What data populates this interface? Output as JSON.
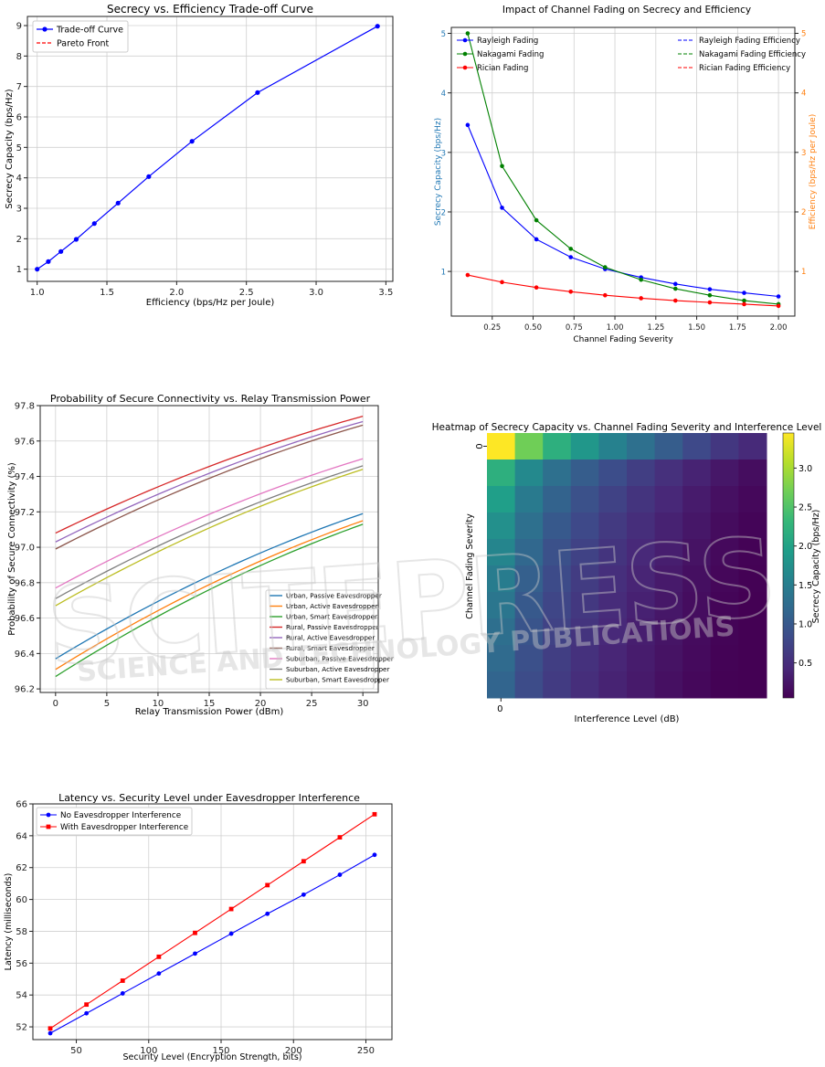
{
  "charts": {
    "tradeoff": {
      "title": "Secrecy vs. Efficiency Trade-off Curve",
      "xlabel": "Efficiency (bps/Hz per Joule)",
      "ylabel": "Secrecy Capacity (bps/Hz)",
      "legend": [
        "Trade-off Curve",
        "Pareto Front"
      ]
    },
    "fading": {
      "title": "Impact of Channel Fading on Secrecy and Efficiency",
      "xlabel": "Channel Fading Severity",
      "ylabel": "Secrecy Capacity (bps/Hz)",
      "ylabel_right": "Efficiency (bps/Hz per Joule)",
      "legend_left": [
        "Rayleigh Fading",
        "Nakagami Fading",
        "Rician Fading"
      ],
      "legend_right": [
        "Rayleigh Fading Efficiency",
        "Nakagami Fading Efficiency",
        "Rician Fading Efficiency"
      ]
    },
    "connectivity": {
      "title": "Probability of Secure Connectivity vs. Relay Transmission Power",
      "xlabel": "Relay Transmission Power (dBm)",
      "ylabel": "Probability of Secure Connectivity (%)"
    },
    "heatmap": {
      "title": "Heatmap of Secrecy Capacity vs. Channel Fading Severity and Interference Level",
      "xlabel": "Interference Level (dB)",
      "ylabel": "Channel Fading Severity",
      "cbar_label": "Secrecy Capacity (bps/Hz)"
    },
    "latency": {
      "title": "Latency vs. Security Level under Eavesdropper Interference",
      "xlabel": "Security Level (Encryption Strength, bits)",
      "ylabel": "Latency (milliseconds)",
      "legend": [
        "No Eavesdropper Interference",
        "With Eavesdropper Interference"
      ]
    }
  },
  "watermark": {
    "main": "SCITEPRESS",
    "sub": "SCIENCE AND TECHNOLOGY PUBLICATIONS"
  },
  "chart_data": [
    {
      "id": "tradeoff",
      "type": "line",
      "title": "Secrecy vs. Efficiency Trade-off Curve",
      "xlabel": "Efficiency (bps/Hz per Joule)",
      "ylabel": "Secrecy Capacity (bps/Hz)",
      "xlim": [
        0.93,
        3.55
      ],
      "ylim": [
        0.6,
        9.3
      ],
      "xticks": [
        1.0,
        1.5,
        2.0,
        2.5,
        3.0,
        3.5
      ],
      "yticks": [
        1,
        2,
        3,
        4,
        5,
        6,
        7,
        8,
        9
      ],
      "grid": true,
      "legend_position": "top-left",
      "series": [
        {
          "name": "Trade-off Curve",
          "color": "#0000ff",
          "marker": "circle",
          "x": [
            1.0,
            1.08,
            1.17,
            1.28,
            1.41,
            1.58,
            1.8,
            2.11,
            2.58,
            3.44
          ],
          "y": [
            1.0,
            1.25,
            1.58,
            1.98,
            2.5,
            3.17,
            4.04,
            5.2,
            6.8,
            8.98
          ]
        },
        {
          "name": "Pareto Front",
          "color": "#ff0000",
          "dash": true,
          "x": [],
          "y": []
        }
      ]
    },
    {
      "id": "fading",
      "type": "line",
      "title": "Impact of Channel Fading on Secrecy and Efficiency",
      "xlabel": "Channel Fading Severity",
      "ylabel": "Secrecy Capacity (bps/Hz)",
      "ylabel_right": "Efficiency (bps/Hz per Joule)",
      "xlim": [
        0.0,
        2.1
      ],
      "ylim": [
        0.25,
        5.1
      ],
      "xticks": [
        0.25,
        0.5,
        0.75,
        1.0,
        1.25,
        1.5,
        1.75,
        2.0
      ],
      "yticks": [
        1,
        2,
        3,
        4,
        5
      ],
      "grid": true,
      "x": [
        0.1,
        0.31,
        0.52,
        0.73,
        0.94,
        1.16,
        1.37,
        1.58,
        1.79,
        2.0
      ],
      "series": [
        {
          "name": "Rayleigh Fading",
          "color": "#0000ff",
          "marker": "circle",
          "values": [
            3.46,
            2.07,
            1.54,
            1.24,
            1.04,
            0.9,
            0.79,
            0.7,
            0.64,
            0.58
          ]
        },
        {
          "name": "Nakagami Fading",
          "color": "#008000",
          "marker": "circle",
          "values": [
            5.0,
            2.77,
            1.86,
            1.38,
            1.07,
            0.86,
            0.71,
            0.6,
            0.51,
            0.45
          ]
        },
        {
          "name": "Rician Fading",
          "color": "#ff0000",
          "marker": "circle",
          "values": [
            0.94,
            0.82,
            0.73,
            0.66,
            0.6,
            0.55,
            0.51,
            0.48,
            0.45,
            0.42
          ]
        }
      ],
      "secondary_series": [
        {
          "name": "Rayleigh Fading Efficiency",
          "color": "#0000ff",
          "dash": true
        },
        {
          "name": "Nakagami Fading Efficiency",
          "color": "#008000",
          "dash": true
        },
        {
          "name": "Rician Fading Efficiency",
          "color": "#ff0000",
          "dash": true
        }
      ]
    },
    {
      "id": "connectivity",
      "type": "line",
      "title": "Probability of Secure Connectivity vs. Relay Transmission Power",
      "xlabel": "Relay Transmission Power (dBm)",
      "ylabel": "Probability of Secure Connectivity (%)",
      "xlim": [
        -1.5,
        31.5
      ],
      "ylim": [
        96.18,
        97.8
      ],
      "xticks": [
        0,
        5,
        10,
        15,
        20,
        25,
        30
      ],
      "yticks": [
        96.2,
        96.4,
        96.6,
        96.8,
        97.0,
        97.2,
        97.4,
        97.6,
        97.8
      ],
      "grid": true,
      "legend_position": "lower-right",
      "x_range": [
        0,
        30
      ],
      "series": [
        {
          "name": "Urban, Passive Eavesdropper",
          "color": "#1f77b4",
          "start": 96.37,
          "end": 97.19
        },
        {
          "name": "Urban, Active Eavesdropper",
          "color": "#ff7f0e",
          "start": 96.31,
          "end": 97.15
        },
        {
          "name": "Urban, Smart Eavesdropper",
          "color": "#2ca02c",
          "start": 96.27,
          "end": 97.13
        },
        {
          "name": "Rural, Passive Eavesdropper",
          "color": "#d62728",
          "start": 97.08,
          "end": 97.74
        },
        {
          "name": "Rural, Active Eavesdropper",
          "color": "#9467bd",
          "start": 97.03,
          "end": 97.71
        },
        {
          "name": "Rural, Smart Eavesdropper",
          "color": "#8c564b",
          "start": 96.99,
          "end": 97.69
        },
        {
          "name": "Suburban, Passive Eavesdropper",
          "color": "#e377c2",
          "start": 96.77,
          "end": 97.5
        },
        {
          "name": "Suburban, Active Eavesdropper",
          "color": "#7f7f7f",
          "start": 96.71,
          "end": 97.46
        },
        {
          "name": "Suburban, Smart Eavesdropper",
          "color": "#bcbd22",
          "start": 96.67,
          "end": 97.44
        }
      ]
    },
    {
      "id": "heatmap",
      "type": "heatmap",
      "title": "Heatmap of Secrecy Capacity vs. Channel Fading Severity and Interference Level",
      "xlabel": "Interference Level (dB)",
      "ylabel": "Channel Fading Severity",
      "xticks": [
        "0"
      ],
      "yticks": [
        "0"
      ],
      "colorbar": {
        "label": "Secrecy Capacity (bps/Hz)",
        "range": [
          0.05,
          3.45
        ],
        "ticks": [
          0.5,
          1.0,
          1.5,
          2.0,
          2.5,
          3.0
        ],
        "colormap": "viridis"
      },
      "rows": 10,
      "cols": 10,
      "values": [
        [
          3.45,
          2.7,
          2.2,
          1.85,
          1.55,
          1.3,
          1.05,
          0.8,
          0.6,
          0.45
        ],
        [
          2.2,
          1.65,
          1.3,
          1.05,
          0.85,
          0.68,
          0.52,
          0.38,
          0.26,
          0.17
        ],
        [
          1.95,
          1.45,
          1.12,
          0.9,
          0.72,
          0.57,
          0.43,
          0.3,
          0.2,
          0.12
        ],
        [
          1.75,
          1.3,
          1.0,
          0.8,
          0.63,
          0.5,
          0.37,
          0.26,
          0.16,
          0.09
        ],
        [
          1.6,
          1.18,
          0.9,
          0.72,
          0.57,
          0.44,
          0.33,
          0.22,
          0.13,
          0.07
        ],
        [
          1.48,
          1.08,
          0.83,
          0.66,
          0.51,
          0.4,
          0.29,
          0.19,
          0.11,
          0.06
        ],
        [
          1.38,
          1.0,
          0.77,
          0.61,
          0.47,
          0.36,
          0.26,
          0.17,
          0.09,
          0.05
        ],
        [
          1.29,
          0.94,
          0.72,
          0.57,
          0.44,
          0.33,
          0.24,
          0.15,
          0.08,
          0.05
        ],
        [
          1.22,
          0.89,
          0.68,
          0.53,
          0.41,
          0.31,
          0.22,
          0.14,
          0.07,
          0.05
        ],
        [
          1.15,
          0.84,
          0.64,
          0.5,
          0.38,
          0.29,
          0.2,
          0.12,
          0.06,
          0.05
        ]
      ]
    },
    {
      "id": "latency",
      "type": "line",
      "title": "Latency vs. Security Level under Eavesdropper Interference",
      "xlabel": "Security Level (Encryption Strength, bits)",
      "ylabel": "Latency (milliseconds)",
      "xlim": [
        20,
        268
      ],
      "ylim": [
        51.2,
        66
      ],
      "xticks": [
        50,
        100,
        150,
        200,
        250
      ],
      "yticks": [
        52,
        54,
        56,
        58,
        60,
        62,
        64,
        66
      ],
      "grid": true,
      "legend_position": "top-left",
      "x": [
        32,
        57,
        82,
        107,
        132,
        157,
        182,
        207,
        232,
        256
      ],
      "series": [
        {
          "name": "No Eavesdropper Interference",
          "color": "#0000ff",
          "marker": "circle",
          "values": [
            51.6,
            52.85,
            54.1,
            55.35,
            56.6,
            57.85,
            59.1,
            60.3,
            61.55,
            62.8
          ]
        },
        {
          "name": "With Eavesdropper Interference",
          "color": "#ff0000",
          "marker": "square",
          "values": [
            51.9,
            53.4,
            54.9,
            56.4,
            57.9,
            59.4,
            60.9,
            62.4,
            63.9,
            65.35
          ]
        }
      ]
    }
  ]
}
